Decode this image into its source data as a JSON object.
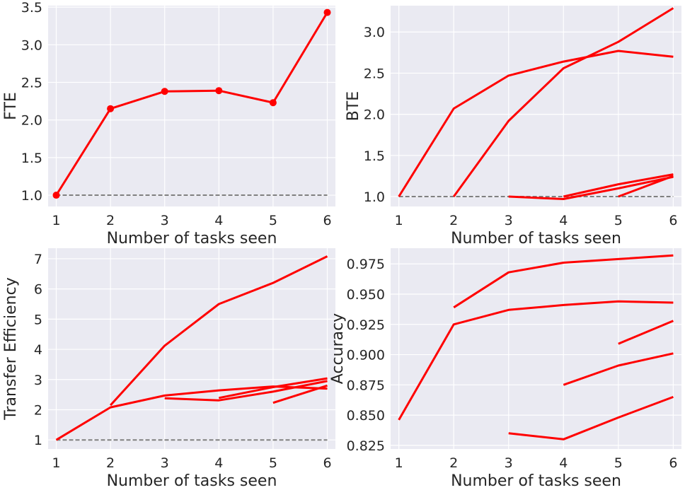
{
  "style": {
    "panel_bg": "#eaeaf2",
    "grid": "#ffffff",
    "series_color": "#ff0000",
    "baseline_color": "#808080"
  },
  "chart_data": [
    {
      "type": "line",
      "xlabel": "Number of tasks seen",
      "ylabel": "FTE",
      "xlim": [
        0.85,
        6.15
      ],
      "ylim": [
        0.85,
        3.52
      ],
      "xticks": [
        1,
        2,
        3,
        4,
        5,
        6
      ],
      "yticks": [
        1.0,
        1.5,
        2.0,
        2.5,
        3.0,
        3.5
      ],
      "ytick_labels": [
        "1.0",
        "1.5",
        "2.0",
        "2.5",
        "3.0",
        "3.5"
      ],
      "grid": true,
      "baseline": {
        "y": 1.0,
        "x": [
          1,
          6
        ],
        "style": "dashed"
      },
      "series": [
        {
          "x": [
            1,
            2,
            3,
            4,
            5,
            6
          ],
          "y": [
            1.0,
            2.15,
            2.38,
            2.39,
            2.23,
            3.43
          ],
          "markers": true
        }
      ]
    },
    {
      "type": "line",
      "xlabel": "Number of tasks seen",
      "ylabel": "BTE",
      "xlim": [
        0.85,
        6.15
      ],
      "ylim": [
        0.88,
        3.32
      ],
      "xticks": [
        1,
        2,
        3,
        4,
        5,
        6
      ],
      "yticks": [
        1.0,
        1.5,
        2.0,
        2.5,
        3.0
      ],
      "ytick_labels": [
        "1.0",
        "1.5",
        "2.0",
        "2.5",
        "3.0"
      ],
      "grid": true,
      "baseline": {
        "y": 1.0,
        "x": [
          1,
          6
        ],
        "style": "dashed"
      },
      "series": [
        {
          "x": [
            1,
            2,
            3,
            4,
            5,
            6
          ],
          "y": [
            1.0,
            2.07,
            2.47,
            2.64,
            2.77,
            2.7
          ]
        },
        {
          "x": [
            2,
            3,
            4,
            5,
            6
          ],
          "y": [
            1.0,
            1.92,
            2.56,
            2.88,
            3.29
          ]
        },
        {
          "x": [
            3,
            4,
            5,
            6
          ],
          "y": [
            1.0,
            0.97,
            1.1,
            1.24
          ]
        },
        {
          "x": [
            4,
            5,
            6
          ],
          "y": [
            1.0,
            1.15,
            1.27
          ]
        },
        {
          "x": [
            5,
            6
          ],
          "y": [
            1.0,
            1.25
          ]
        }
      ]
    },
    {
      "type": "line",
      "xlabel": "Number of tasks seen",
      "ylabel": "Transfer Efficiency",
      "xlim": [
        0.85,
        6.15
      ],
      "ylim": [
        0.7,
        7.35
      ],
      "xticks": [
        1,
        2,
        3,
        4,
        5,
        6
      ],
      "yticks": [
        1,
        2,
        3,
        4,
        5,
        6,
        7
      ],
      "ytick_labels": [
        "1",
        "2",
        "3",
        "4",
        "5",
        "6",
        "7"
      ],
      "grid": true,
      "baseline": {
        "y": 1.0,
        "x": [
          1,
          6
        ],
        "style": "dashed"
      },
      "series": [
        {
          "x": [
            1,
            2,
            3,
            4,
            5,
            6
          ],
          "y": [
            1.0,
            2.08,
            2.47,
            2.64,
            2.77,
            2.7
          ]
        },
        {
          "x": [
            2,
            3,
            4,
            5,
            6
          ],
          "y": [
            2.15,
            4.12,
            5.5,
            6.2,
            7.08
          ]
        },
        {
          "x": [
            3,
            4,
            5,
            6
          ],
          "y": [
            2.38,
            2.31,
            2.6,
            2.95
          ]
        },
        {
          "x": [
            4,
            5,
            6
          ],
          "y": [
            2.39,
            2.75,
            3.04
          ]
        },
        {
          "x": [
            5,
            6
          ],
          "y": [
            2.23,
            2.8
          ]
        }
      ]
    },
    {
      "type": "line",
      "xlabel": "Number of tasks seen",
      "ylabel": "Accuracy",
      "xlim": [
        0.85,
        6.15
      ],
      "ylim": [
        0.822,
        0.988
      ],
      "xticks": [
        1,
        2,
        3,
        4,
        5,
        6
      ],
      "yticks": [
        0.825,
        0.85,
        0.875,
        0.9,
        0.925,
        0.95,
        0.975
      ],
      "ytick_labels": [
        "0.825",
        "0.850",
        "0.875",
        "0.900",
        "0.925",
        "0.950",
        "0.975"
      ],
      "grid": true,
      "series": [
        {
          "x": [
            1,
            2,
            3,
            4,
            5,
            6
          ],
          "y": [
            0.846,
            0.925,
            0.937,
            0.941,
            0.944,
            0.943
          ]
        },
        {
          "x": [
            2,
            3,
            4,
            5,
            6
          ],
          "y": [
            0.939,
            0.968,
            0.976,
            0.979,
            0.982
          ]
        },
        {
          "x": [
            3,
            4,
            5,
            6
          ],
          "y": [
            0.835,
            0.83,
            0.848,
            0.865
          ]
        },
        {
          "x": [
            4,
            5,
            6
          ],
          "y": [
            0.875,
            0.891,
            0.901
          ]
        },
        {
          "x": [
            5,
            6
          ],
          "y": [
            0.909,
            0.928
          ]
        }
      ]
    }
  ]
}
